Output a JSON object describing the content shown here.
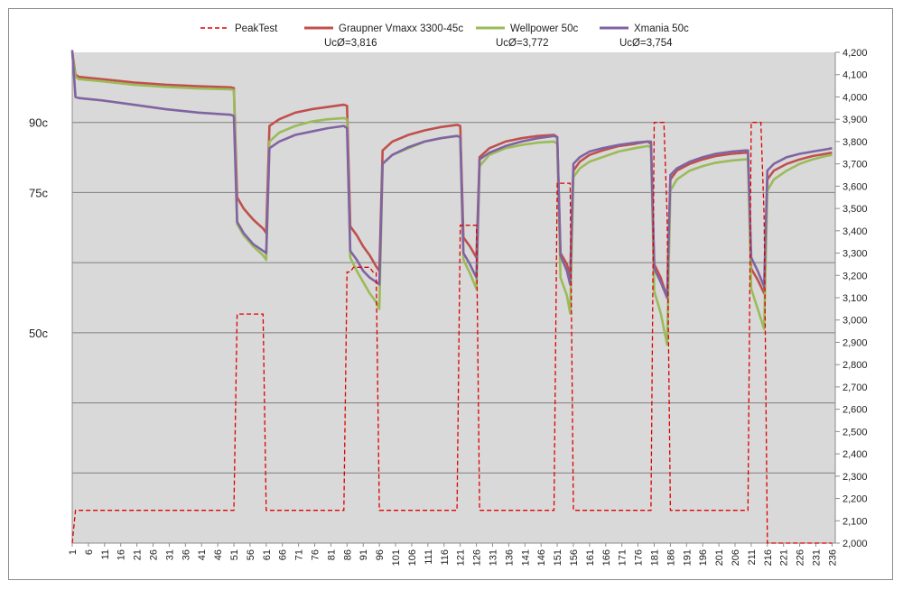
{
  "chart_data": {
    "type": "line",
    "legend": {
      "placement": "top",
      "entries": [
        {
          "name": "PeakTest",
          "color": "#e00000",
          "style": "dashed",
          "note": ""
        },
        {
          "name": "Graupner Vmaxx 3300-45c",
          "color": "#c0504d",
          "style": "solid",
          "note": "UcØ=3,816"
        },
        {
          "name": "Wellpower 50c",
          "color": "#9bbb59",
          "style": "solid",
          "note": "UcØ=3,772"
        },
        {
          "name": "Xmania 50c",
          "color": "#8064a2",
          "style": "solid",
          "note": "UcØ=3,754"
        }
      ]
    },
    "x_range": [
      1,
      237
    ],
    "x_ticks": [
      "1",
      "6",
      "11",
      "16",
      "21",
      "26",
      "31",
      "36",
      "41",
      "46",
      "51",
      "56",
      "61",
      "66",
      "71",
      "76",
      "81",
      "86",
      "91",
      "96",
      "101",
      "106",
      "111",
      "116",
      "121",
      "126",
      "131",
      "136",
      "141",
      "146",
      "151",
      "156",
      "161",
      "166",
      "171",
      "176",
      "181",
      "186",
      "191",
      "196",
      "201",
      "206",
      "211",
      "216",
      "221",
      "226",
      "231",
      "236"
    ],
    "y_right_range": [
      2.0,
      4.2
    ],
    "y_right_ticks": [
      "2,000",
      "2,100",
      "2,200",
      "2,300",
      "2,400",
      "2,500",
      "2,600",
      "2,700",
      "2,800",
      "2,900",
      "3,000",
      "3,100",
      "3,200",
      "3,300",
      "3,400",
      "3,500",
      "3,600",
      "3,700",
      "3,800",
      "3,900",
      "4,000",
      "4,100",
      "4,200"
    ],
    "y_left_range": [
      0,
      105
    ],
    "y_left_gridlines": [
      15,
      30,
      45,
      60,
      75,
      90
    ],
    "y_left_labels": [
      {
        "value": 45,
        "label": "50c"
      },
      {
        "value": 75,
        "label": "75c"
      },
      {
        "value": 90,
        "label": "90c"
      }
    ],
    "grid": true,
    "plot_background": "#d9d9d9",
    "peak_series": {
      "name": "PeakTest",
      "axis": "left",
      "points": [
        [
          1,
          0
        ],
        [
          2,
          7
        ],
        [
          51,
          7
        ],
        [
          52,
          49
        ],
        [
          60,
          49
        ],
        [
          61,
          7
        ],
        [
          85,
          7
        ],
        [
          86,
          58
        ],
        [
          87,
          58
        ],
        [
          88,
          59
        ],
        [
          93,
          59
        ],
        [
          94,
          58
        ],
        [
          95,
          58
        ],
        [
          96,
          7
        ],
        [
          120,
          7
        ],
        [
          121,
          68
        ],
        [
          122,
          68
        ],
        [
          123,
          68
        ],
        [
          126,
          68
        ],
        [
          127,
          7
        ],
        [
          150,
          7
        ],
        [
          151,
          77
        ],
        [
          152,
          77
        ],
        [
          153,
          77
        ],
        [
          155,
          77
        ],
        [
          156,
          7
        ],
        [
          180,
          7
        ],
        [
          181,
          90
        ],
        [
          182,
          90
        ],
        [
          184,
          90
        ],
        [
          185,
          70
        ],
        [
          186,
          7
        ],
        [
          210,
          7
        ],
        [
          211,
          90
        ],
        [
          212,
          90
        ],
        [
          214,
          90
        ],
        [
          215,
          70
        ],
        [
          216,
          0
        ],
        [
          236,
          0
        ]
      ]
    },
    "series": [
      {
        "name": "Graupner Vmaxx 3300-45c",
        "axis": "right",
        "points": [
          [
            1,
            4.2
          ],
          [
            2,
            4.1
          ],
          [
            3,
            4.09
          ],
          [
            10,
            4.08
          ],
          [
            20,
            4.065
          ],
          [
            30,
            4.055
          ],
          [
            40,
            4.048
          ],
          [
            50,
            4.043
          ],
          [
            51,
            4.04
          ],
          [
            52,
            3.55
          ],
          [
            54,
            3.5
          ],
          [
            57,
            3.45
          ],
          [
            60,
            3.41
          ],
          [
            61,
            3.39
          ],
          [
            62,
            3.87
          ],
          [
            65,
            3.9
          ],
          [
            70,
            3.93
          ],
          [
            75,
            3.945
          ],
          [
            80,
            3.955
          ],
          [
            85,
            3.965
          ],
          [
            86,
            3.96
          ],
          [
            87,
            3.42
          ],
          [
            89,
            3.38
          ],
          [
            91,
            3.33
          ],
          [
            93,
            3.29
          ],
          [
            95,
            3.24
          ],
          [
            96,
            3.22
          ],
          [
            97,
            3.76
          ],
          [
            100,
            3.8
          ],
          [
            105,
            3.83
          ],
          [
            110,
            3.85
          ],
          [
            115,
            3.865
          ],
          [
            120,
            3.875
          ],
          [
            121,
            3.87
          ],
          [
            122,
            3.37
          ],
          [
            124,
            3.33
          ],
          [
            126,
            3.28
          ],
          [
            127,
            3.73
          ],
          [
            130,
            3.77
          ],
          [
            135,
            3.8
          ],
          [
            140,
            3.815
          ],
          [
            145,
            3.825
          ],
          [
            150,
            3.83
          ],
          [
            151,
            3.82
          ],
          [
            152,
            3.3
          ],
          [
            154,
            3.25
          ],
          [
            155,
            3.2
          ],
          [
            156,
            3.67
          ],
          [
            158,
            3.71
          ],
          [
            161,
            3.74
          ],
          [
            165,
            3.76
          ],
          [
            170,
            3.78
          ],
          [
            175,
            3.79
          ],
          [
            179,
            3.8
          ],
          [
            180,
            3.79
          ],
          [
            181,
            3.25
          ],
          [
            183,
            3.19
          ],
          [
            185,
            3.1
          ],
          [
            186,
            3.63
          ],
          [
            188,
            3.67
          ],
          [
            192,
            3.7
          ],
          [
            196,
            3.72
          ],
          [
            200,
            3.735
          ],
          [
            205,
            3.745
          ],
          [
            209,
            3.75
          ],
          [
            210,
            3.75
          ],
          [
            211,
            3.23
          ],
          [
            213,
            3.18
          ],
          [
            215,
            3.12
          ],
          [
            216,
            3.63
          ],
          [
            218,
            3.67
          ],
          [
            222,
            3.7
          ],
          [
            226,
            3.72
          ],
          [
            230,
            3.735
          ],
          [
            234,
            3.745
          ],
          [
            236,
            3.75
          ]
        ]
      },
      {
        "name": "Wellpower 50c",
        "axis": "right",
        "points": [
          [
            1,
            4.19
          ],
          [
            2,
            4.09
          ],
          [
            3,
            4.08
          ],
          [
            10,
            4.07
          ],
          [
            20,
            4.055
          ],
          [
            30,
            4.045
          ],
          [
            40,
            4.038
          ],
          [
            50,
            4.034
          ],
          [
            51,
            4.03
          ],
          [
            52,
            3.43
          ],
          [
            54,
            3.38
          ],
          [
            57,
            3.33
          ],
          [
            60,
            3.29
          ],
          [
            61,
            3.27
          ],
          [
            62,
            3.8
          ],
          [
            65,
            3.84
          ],
          [
            70,
            3.87
          ],
          [
            75,
            3.89
          ],
          [
            80,
            3.9
          ],
          [
            85,
            3.905
          ],
          [
            86,
            3.9
          ],
          [
            87,
            3.28
          ],
          [
            89,
            3.22
          ],
          [
            91,
            3.17
          ],
          [
            93,
            3.12
          ],
          [
            95,
            3.08
          ],
          [
            96,
            3.05
          ],
          [
            97,
            3.7
          ],
          [
            100,
            3.74
          ],
          [
            105,
            3.77
          ],
          [
            110,
            3.8
          ],
          [
            115,
            3.815
          ],
          [
            120,
            3.825
          ],
          [
            121,
            3.82
          ],
          [
            122,
            3.27
          ],
          [
            124,
            3.21
          ],
          [
            126,
            3.14
          ],
          [
            127,
            3.69
          ],
          [
            130,
            3.74
          ],
          [
            135,
            3.77
          ],
          [
            140,
            3.785
          ],
          [
            145,
            3.795
          ],
          [
            150,
            3.8
          ],
          [
            151,
            3.79
          ],
          [
            152,
            3.19
          ],
          [
            154,
            3.11
          ],
          [
            155,
            3.03
          ],
          [
            156,
            3.64
          ],
          [
            158,
            3.68
          ],
          [
            161,
            3.71
          ],
          [
            165,
            3.73
          ],
          [
            170,
            3.755
          ],
          [
            175,
            3.77
          ],
          [
            179,
            3.78
          ],
          [
            180,
            3.775
          ],
          [
            181,
            3.13
          ],
          [
            183,
            3.03
          ],
          [
            185,
            2.89
          ],
          [
            186,
            3.58
          ],
          [
            188,
            3.63
          ],
          [
            192,
            3.67
          ],
          [
            196,
            3.69
          ],
          [
            200,
            3.705
          ],
          [
            205,
            3.715
          ],
          [
            209,
            3.72
          ],
          [
            210,
            3.72
          ],
          [
            211,
            3.14
          ],
          [
            213,
            3.05
          ],
          [
            215,
            2.96
          ],
          [
            216,
            3.58
          ],
          [
            218,
            3.63
          ],
          [
            222,
            3.67
          ],
          [
            226,
            3.7
          ],
          [
            230,
            3.72
          ],
          [
            234,
            3.735
          ],
          [
            236,
            3.74
          ]
        ]
      },
      {
        "name": "Xmania 50c",
        "axis": "right",
        "points": [
          [
            1,
            4.21
          ],
          [
            2,
            4.0
          ],
          [
            3,
            3.995
          ],
          [
            10,
            3.985
          ],
          [
            20,
            3.965
          ],
          [
            30,
            3.945
          ],
          [
            40,
            3.93
          ],
          [
            50,
            3.92
          ],
          [
            51,
            3.915
          ],
          [
            52,
            3.44
          ],
          [
            54,
            3.39
          ],
          [
            57,
            3.34
          ],
          [
            60,
            3.31
          ],
          [
            61,
            3.3
          ],
          [
            62,
            3.77
          ],
          [
            65,
            3.8
          ],
          [
            70,
            3.83
          ],
          [
            75,
            3.845
          ],
          [
            80,
            3.86
          ],
          [
            85,
            3.87
          ],
          [
            86,
            3.86
          ],
          [
            87,
            3.31
          ],
          [
            89,
            3.27
          ],
          [
            91,
            3.22
          ],
          [
            93,
            3.19
          ],
          [
            95,
            3.17
          ],
          [
            96,
            3.16
          ],
          [
            97,
            3.7
          ],
          [
            100,
            3.74
          ],
          [
            105,
            3.775
          ],
          [
            110,
            3.8
          ],
          [
            115,
            3.815
          ],
          [
            120,
            3.825
          ],
          [
            121,
            3.82
          ],
          [
            122,
            3.3
          ],
          [
            124,
            3.25
          ],
          [
            126,
            3.19
          ],
          [
            127,
            3.72
          ],
          [
            130,
            3.75
          ],
          [
            135,
            3.78
          ],
          [
            140,
            3.8
          ],
          [
            145,
            3.815
          ],
          [
            150,
            3.825
          ],
          [
            151,
            3.82
          ],
          [
            152,
            3.29
          ],
          [
            154,
            3.22
          ],
          [
            155,
            3.16
          ],
          [
            156,
            3.7
          ],
          [
            158,
            3.73
          ],
          [
            161,
            3.755
          ],
          [
            165,
            3.77
          ],
          [
            170,
            3.785
          ],
          [
            175,
            3.795
          ],
          [
            179,
            3.8
          ],
          [
            180,
            3.8
          ],
          [
            181,
            3.23
          ],
          [
            183,
            3.17
          ],
          [
            185,
            3.1
          ],
          [
            186,
            3.65
          ],
          [
            188,
            3.68
          ],
          [
            192,
            3.71
          ],
          [
            196,
            3.73
          ],
          [
            200,
            3.745
          ],
          [
            205,
            3.755
          ],
          [
            209,
            3.76
          ],
          [
            210,
            3.76
          ],
          [
            211,
            3.28
          ],
          [
            213,
            3.22
          ],
          [
            215,
            3.15
          ],
          [
            216,
            3.67
          ],
          [
            218,
            3.7
          ],
          [
            222,
            3.73
          ],
          [
            226,
            3.745
          ],
          [
            230,
            3.755
          ],
          [
            234,
            3.765
          ],
          [
            236,
            3.77
          ]
        ]
      }
    ]
  }
}
